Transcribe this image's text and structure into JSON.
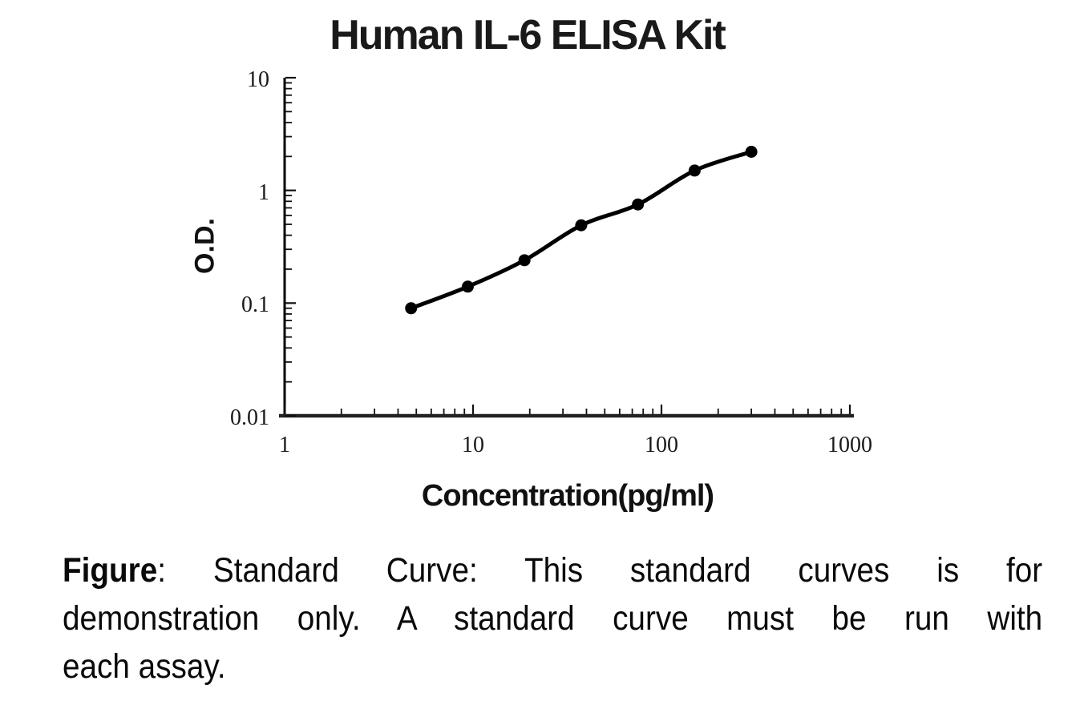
{
  "chart_data": {
    "type": "line",
    "title": "Human IL-6 ELISA Kit",
    "xlabel": "Concentration(pg/ml)",
    "ylabel": "O.D.",
    "x_scale": "log",
    "y_scale": "log",
    "xlim": [
      1,
      1000
    ],
    "ylim": [
      0.01,
      10
    ],
    "x_ticks": [
      1,
      10,
      100,
      1000
    ],
    "y_ticks": [
      10,
      1,
      0.1,
      0.01
    ],
    "grid": false,
    "legend": false,
    "series": [
      {
        "name": "standard-curve",
        "x": [
          4.69,
          9.38,
          18.75,
          37.5,
          75,
          150,
          300
        ],
        "y": [
          0.09,
          0.14,
          0.24,
          0.49,
          0.75,
          1.5,
          2.2
        ],
        "line_color": "#000000",
        "marker_color": "#000000",
        "marker": "circle"
      }
    ]
  },
  "caption": {
    "figure_label": "Figure",
    "line1_rest": ": Standard Curve: This standard curves is for",
    "line2": "demonstration only. A standard curve must be run with",
    "line3": "each assay."
  }
}
